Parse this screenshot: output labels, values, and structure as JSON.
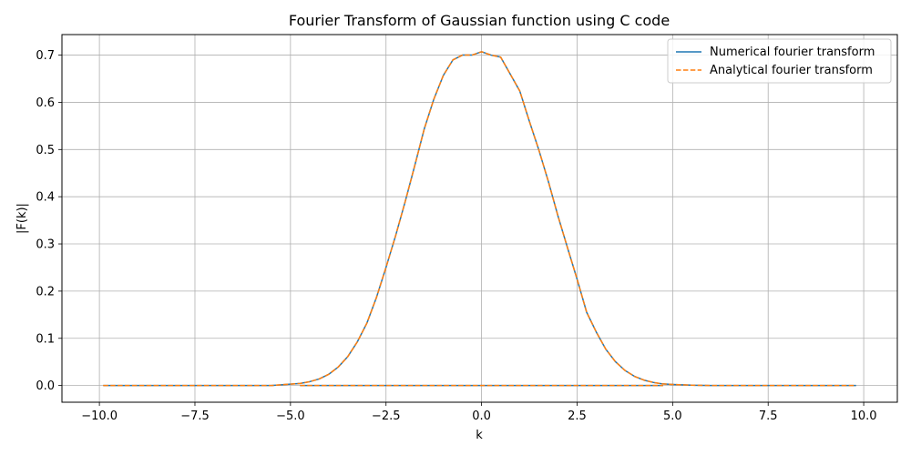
{
  "chart_data": {
    "type": "line",
    "title": "Fourier Transform of Gaussian function using C code",
    "xlabel": "k",
    "ylabel": "|F(k)|",
    "xlim": [
      -10.98,
      10.88
    ],
    "ylim": [
      -0.0354,
      0.7435
    ],
    "xticks": [
      -10.0,
      -7.5,
      -5.0,
      -2.5,
      0.0,
      2.5,
      5.0,
      7.5,
      10.0
    ],
    "xtick_labels": [
      "−10.0",
      "−7.5",
      "−5.0",
      "−2.5",
      "0.0",
      "2.5",
      "5.0",
      "7.5",
      "10.0"
    ],
    "yticks": [
      0.0,
      0.1,
      0.2,
      0.3,
      0.4,
      0.5,
      0.6,
      0.7
    ],
    "ytick_labels": [
      "0.0",
      "0.1",
      "0.2",
      "0.3",
      "0.4",
      "0.5",
      "0.6",
      "0.7"
    ],
    "grid": true,
    "legend_position": "top-right",
    "series": [
      {
        "name": "Numerical fourier transform",
        "color": "#1f77b4",
        "style": "solid",
        "x": [
          -9.9,
          -9.0,
          -8.0,
          -7.0,
          -6.0,
          -5.5,
          -5.0,
          -4.75,
          -4.5,
          -4.25,
          -4.0,
          -3.75,
          -3.5,
          -3.25,
          -3.0,
          -2.75,
          -2.5,
          -2.25,
          -2.0,
          -1.75,
          -1.5,
          -1.25,
          -1.0,
          -0.75,
          -0.5,
          -0.25,
          -0.1,
          0.0,
          0.1,
          0.25,
          0.5,
          0.75,
          1.0,
          1.25,
          1.5,
          1.75,
          2.0,
          2.25,
          2.5,
          2.75,
          3.0,
          3.25,
          3.5,
          3.75,
          4.0,
          4.25,
          4.5,
          4.75,
          5.0,
          5.5,
          6.0,
          7.0,
          8.0,
          9.0,
          9.8
        ],
        "y": [
          0.0,
          0.0,
          0.0,
          0.0,
          0.0,
          0.0,
          0.003,
          0.0043,
          0.0081,
          0.0139,
          0.0237,
          0.0392,
          0.0613,
          0.0926,
          0.1322,
          0.1866,
          0.2503,
          0.317,
          0.3891,
          0.4652,
          0.5434,
          0.6064,
          0.657,
          0.6898,
          0.7,
          0.7,
          0.7043,
          0.7071,
          0.7043,
          0.7,
          0.6957,
          0.6598,
          0.624,
          0.5601,
          0.4988,
          0.4318,
          0.3591,
          0.2916,
          0.2254,
          0.1552,
          0.1136,
          0.0771,
          0.0508,
          0.0321,
          0.0195,
          0.0114,
          0.0064,
          0.0033,
          0.0023,
          0.0007,
          0.0,
          0.0,
          0.0,
          0.0,
          0.0
        ]
      },
      {
        "name": "Analytical fourier transform",
        "color": "#ff7f0e",
        "style": "dashed",
        "x": [
          -9.9,
          -9.0,
          -8.0,
          -7.0,
          -6.0,
          -5.5,
          -5.0,
          -4.75,
          -4.5,
          -4.25,
          -4.0,
          -3.75,
          -3.5,
          -3.25,
          -3.0,
          -2.75,
          -2.5,
          -2.25,
          -2.0,
          -1.75,
          -1.5,
          -1.25,
          -1.0,
          -0.75,
          -0.5,
          -0.25,
          -0.1,
          0.0,
          0.1,
          0.25,
          0.5,
          0.75,
          1.0,
          1.25,
          1.5,
          1.75,
          2.0,
          2.25,
          2.5,
          2.75,
          3.0,
          3.25,
          3.5,
          3.75,
          4.0,
          4.25,
          4.5,
          4.75,
          5.0,
          5.5,
          6.0,
          7.0,
          8.0,
          9.0,
          9.8
        ],
        "y": [
          0.0,
          0.0,
          0.0,
          0.0,
          0.0,
          0.0,
          0.003,
          0.0043,
          0.0081,
          0.0139,
          0.0237,
          0.0392,
          0.0613,
          0.0926,
          0.1322,
          0.1866,
          0.2503,
          0.317,
          0.3891,
          0.4652,
          0.5434,
          0.6064,
          0.657,
          0.6898,
          0.7,
          0.7,
          0.7043,
          0.7071,
          0.7043,
          0.7,
          0.6957,
          0.6598,
          0.624,
          0.5601,
          0.4988,
          0.4318,
          0.3591,
          0.2916,
          0.2254,
          0.1552,
          0.1136,
          0.0771,
          0.0508,
          0.0321,
          0.0195,
          0.0114,
          0.0064,
          0.0033,
          0.0023,
          0.0007,
          0.0,
          0.0,
          0.0,
          0.0,
          0.0
        ]
      }
    ],
    "baseline_artifact": {
      "description_visible": "flat line at zero",
      "x": [
        -4.75,
        4.75
      ],
      "y": [
        0.0,
        0.0
      ]
    }
  }
}
